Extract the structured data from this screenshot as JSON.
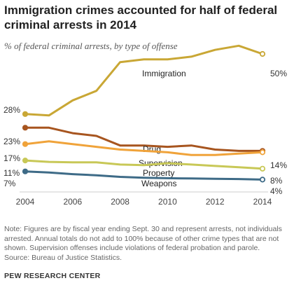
{
  "title_line1": "Immigration crimes accounted for half of federal",
  "title_line2": "criminal arrests in 2014",
  "subtitle": "% of federal criminal arrests, by type of offense",
  "note_lines": [
    "Note: Figures are by fiscal year ending Sept. 30 and represent arrests, not individuals",
    "arrested. Annual totals do not add to 100% because of other crime types that are not",
    "shown. Supervision offenses include violations of federal probation and parole.",
    "Source: Bureau of Justice Statistics."
  ],
  "footer": "PEW RESEARCH CENTER",
  "chart_data": {
    "type": "line",
    "title": "Immigration crimes accounted for half of federal criminal arrests in 2014",
    "subtitle": "% of federal criminal arrests, by type of offense",
    "x": [
      2004,
      2005,
      2006,
      2007,
      2008,
      2009,
      2010,
      2011,
      2012,
      2013,
      2014
    ],
    "xticks": [
      "2004",
      "2006",
      "2008",
      "2010",
      "2012",
      "2014"
    ],
    "ylim": [
      0,
      56
    ],
    "grid": false,
    "legend": "direct labels on lines",
    "series": [
      {
        "name": "Immigration",
        "color": "#c9a735",
        "start_label": "28%",
        "end_label": "50%",
        "values": [
          28,
          27.5,
          33,
          36.5,
          47,
          48,
          48,
          49,
          51.5,
          53,
          50
        ]
      },
      {
        "name": "Drug",
        "color": "#a7551f",
        "start_label": "23%",
        "end_label": "",
        "values": [
          23,
          23,
          21,
          20,
          16.5,
          16.5,
          16,
          16.5,
          15,
          14.5,
          14.5
        ]
      },
      {
        "name": "Supervision",
        "color": "#f0a33a",
        "start_label": "17%",
        "end_label": "14%",
        "values": [
          17,
          18,
          17,
          16,
          15,
          14.5,
          14,
          13,
          13,
          13.5,
          14
        ]
      },
      {
        "name": "Property",
        "color": "#c8c857",
        "start_label": "11%",
        "end_label": "8%",
        "values": [
          11,
          10.5,
          10.3,
          10.3,
          9.5,
          9.3,
          10,
          9.5,
          9,
          8.5,
          8
        ]
      },
      {
        "name": "Weapons",
        "color": "#3e6b87",
        "start_label": "7%",
        "end_label": "4%",
        "values": [
          7,
          6.6,
          6,
          5.6,
          5,
          4.7,
          4.5,
          4.4,
          4.3,
          4.2,
          4
        ]
      }
    ]
  }
}
